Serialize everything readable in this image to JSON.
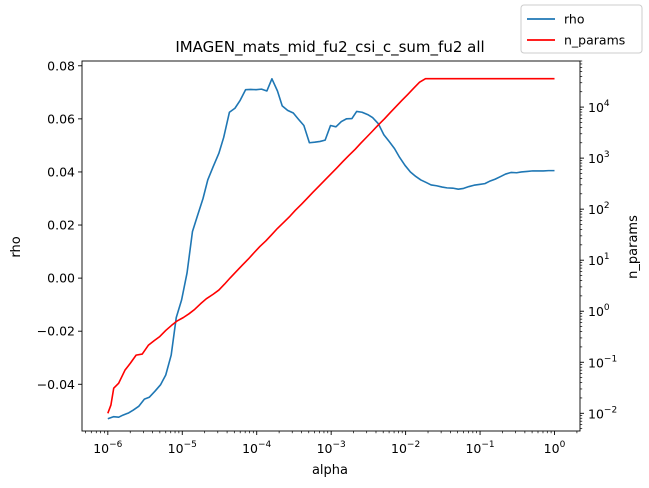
{
  "chart_data": {
    "type": "line",
    "title": "IMAGEN_mats_mid_fu2_csi_c_sum_fu2 all",
    "xlabel": "alpha",
    "ylabel_left": "rho",
    "ylabel_right": "n_params",
    "x_scale": "log",
    "y_right_scale": "log",
    "xlim": [
      4.5e-07,
      2.2
    ],
    "ylim_left": [
      -0.0576,
      0.0818
    ],
    "ylim_right": [
      0.0045,
      80000
    ],
    "grid": false,
    "legend_placement": "top-right",
    "x_ticks": [
      {
        "value": 1e-06,
        "base": "10",
        "exp": "−6"
      },
      {
        "value": 1e-05,
        "base": "10",
        "exp": "−5"
      },
      {
        "value": 0.0001,
        "base": "10",
        "exp": "−4"
      },
      {
        "value": 0.001,
        "base": "10",
        "exp": "−3"
      },
      {
        "value": 0.01,
        "base": "10",
        "exp": "−2"
      },
      {
        "value": 0.1,
        "base": "10",
        "exp": "−1"
      },
      {
        "value": 1,
        "base": "10",
        "exp": "0"
      }
    ],
    "y_left_ticks": [
      {
        "value": -0.04,
        "label": "−0.04"
      },
      {
        "value": -0.02,
        "label": "−0.02"
      },
      {
        "value": 0.0,
        "label": "0.00"
      },
      {
        "value": 0.02,
        "label": "0.02"
      },
      {
        "value": 0.04,
        "label": "0.04"
      },
      {
        "value": 0.06,
        "label": "0.06"
      },
      {
        "value": 0.08,
        "label": "0.08"
      }
    ],
    "y_right_ticks": [
      {
        "value": 0.01,
        "base": "10",
        "exp": "−2"
      },
      {
        "value": 0.1,
        "base": "10",
        "exp": "−1"
      },
      {
        "value": 1,
        "base": "10",
        "exp": "0"
      },
      {
        "value": 10,
        "base": "10",
        "exp": "1"
      },
      {
        "value": 100,
        "base": "10",
        "exp": "2"
      },
      {
        "value": 1000,
        "base": "10",
        "exp": "3"
      },
      {
        "value": 10000,
        "base": "10",
        "exp": "4"
      }
    ],
    "series": [
      {
        "name": "rho",
        "color": "#1f77b4",
        "axis": "left",
        "x": [
          1e-06,
          1.2e-06,
          1.4e-06,
          1.6e-06,
          1.9e-06,
          2.2e-06,
          2.6e-06,
          3.1e-06,
          3.6e-06,
          4.3e-06,
          5.1e-06,
          6e-06,
          7.1e-06,
          8.3e-06,
          9.8e-06,
          1.16e-05,
          1.37e-05,
          1.6e-05,
          1.9e-05,
          2.2e-05,
          2.6e-05,
          3.1e-05,
          3.6e-05,
          4.3e-05,
          5.1e-05,
          6e-05,
          7.1e-05,
          8.3e-05,
          9.8e-05,
          0.000116,
          0.000137,
          0.00016,
          0.00019,
          0.00022,
          0.00026,
          0.00031,
          0.00036,
          0.00043,
          0.00051,
          0.0006,
          0.00071,
          0.00083,
          0.00098,
          0.00116,
          0.00137,
          0.0016,
          0.0019,
          0.0022,
          0.0026,
          0.0031,
          0.0036,
          0.0043,
          0.0051,
          0.006,
          0.0071,
          0.0083,
          0.0098,
          0.0116,
          0.0137,
          0.016,
          0.019,
          0.022,
          0.026,
          0.031,
          0.036,
          0.043,
          0.051,
          0.06,
          0.071,
          0.083,
          0.098,
          0.116,
          0.137,
          0.16,
          0.19,
          0.22,
          0.26,
          0.31,
          0.36,
          0.43,
          0.51,
          0.6,
          0.71,
          0.83,
          1.0
        ],
        "values": [
          -0.053,
          -0.0522,
          -0.0524,
          -0.0516,
          -0.0508,
          -0.0497,
          -0.0483,
          -0.0456,
          -0.0449,
          -0.0426,
          -0.0402,
          -0.0365,
          -0.029,
          -0.0149,
          -0.0082,
          0.002,
          0.0175,
          0.0235,
          0.03,
          0.037,
          0.042,
          0.047,
          0.053,
          0.0625,
          0.064,
          0.067,
          0.071,
          0.0711,
          0.071,
          0.0712,
          0.0705,
          0.0751,
          0.0705,
          0.0649,
          0.0632,
          0.0622,
          0.06,
          0.0575,
          0.051,
          0.0512,
          0.0515,
          0.052,
          0.0575,
          0.057,
          0.059,
          0.06,
          0.0601,
          0.0628,
          0.0625,
          0.0616,
          0.0605,
          0.0582,
          0.054,
          0.0515,
          0.0488,
          0.0455,
          0.0425,
          0.04,
          0.0383,
          0.037,
          0.036,
          0.0351,
          0.0348,
          0.0343,
          0.034,
          0.0339,
          0.0335,
          0.0338,
          0.0345,
          0.035,
          0.0353,
          0.0356,
          0.0366,
          0.0373,
          0.0383,
          0.0392,
          0.0398,
          0.0397,
          0.04,
          0.0402,
          0.0404,
          0.0404,
          0.0404,
          0.0405,
          0.0405
        ]
      },
      {
        "name": "n_params",
        "color": "#ff0000",
        "axis": "right",
        "x": [
          1e-06,
          1.1e-06,
          1.2e-06,
          1.4e-06,
          1.7e-06,
          2e-06,
          2.4e-06,
          2.9e-06,
          3.5e-06,
          4.2e-06,
          5e-06,
          6e-06,
          7.2e-06,
          8.6e-06,
          1.03e-05,
          1.23e-05,
          1.47e-05,
          1.76e-05,
          2.1e-05,
          2.6e-05,
          3.1e-05,
          3.7e-05,
          4.4e-05,
          5.3e-05,
          6.4e-05,
          7.7e-05,
          9.2e-05,
          0.00011,
          0.000133,
          0.00016,
          0.00019,
          0.00023,
          0.00028,
          0.00033,
          0.0004,
          0.00048,
          0.00057,
          0.00069,
          0.00083,
          0.001,
          0.0012,
          0.00144,
          0.00173,
          0.0021,
          0.0025,
          0.003,
          0.0036,
          0.0043,
          0.0052,
          0.0062,
          0.0074,
          0.0089,
          0.0107,
          0.0128,
          0.0154,
          0.0185,
          0.022,
          0.027,
          0.032,
          0.038,
          0.046,
          0.055,
          0.066,
          0.079,
          0.095,
          0.114,
          0.137,
          0.164,
          0.197,
          0.24,
          0.28,
          0.34,
          0.41,
          0.49,
          0.59,
          0.7,
          0.85,
          1.0
        ],
        "values": [
          0.01,
          0.0145,
          0.031,
          0.039,
          0.07,
          0.095,
          0.138,
          0.145,
          0.215,
          0.265,
          0.32,
          0.42,
          0.53,
          0.65,
          0.75,
          0.89,
          1.09,
          1.4,
          1.75,
          2.15,
          2.6,
          3.4,
          4.5,
          6.0,
          8.0,
          10.5,
          14.0,
          18.5,
          24.0,
          32.0,
          42.0,
          55.0,
          73.0,
          95.0,
          125.0,
          165.0,
          215.0,
          285.0,
          375.0,
          495.0,
          650.0,
          860.0,
          1130.0,
          1490.0,
          1960.0,
          2580.0,
          3400.0,
          4480.0,
          5900.0,
          7770.0,
          10200,
          13500,
          17700,
          23300,
          30700,
          36000,
          36000,
          36000,
          36000,
          36000,
          36000,
          36000,
          36000,
          36000,
          36000,
          36000,
          36000,
          36000,
          36000,
          36000,
          36000,
          36000,
          36000,
          36000,
          36000,
          36000,
          36000,
          36000
        ]
      }
    ]
  }
}
